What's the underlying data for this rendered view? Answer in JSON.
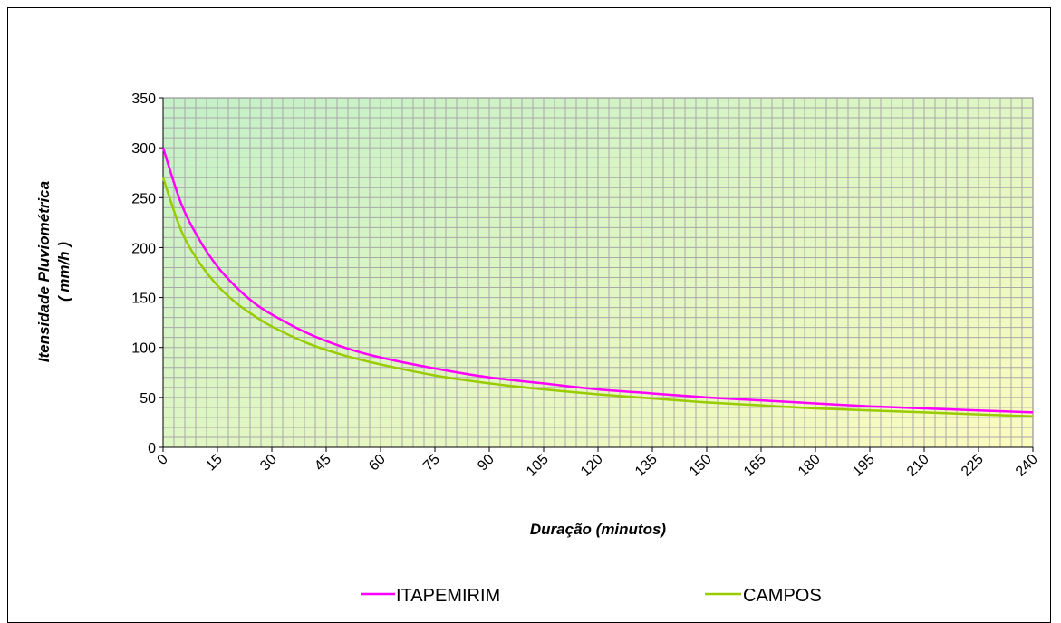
{
  "chart_data": {
    "type": "line",
    "title": "",
    "xlabel": "Duração (minutos)",
    "ylabel_line1": "Itensidade Pluviométrica",
    "ylabel_line2": "( mm/h )",
    "xlim": [
      0,
      240
    ],
    "ylim": [
      0,
      350
    ],
    "x_ticks": [
      "0",
      "15",
      "30",
      "45",
      "60",
      "75",
      "90",
      "105",
      "120",
      "135",
      "150",
      "165",
      "180",
      "195",
      "210",
      "225",
      "240"
    ],
    "y_ticks": [
      "0",
      "50",
      "100",
      "150",
      "200",
      "250",
      "300",
      "350"
    ],
    "grid": true,
    "legend_position": "bottom",
    "x": [
      0,
      5,
      10,
      15,
      20,
      25,
      30,
      40,
      50,
      60,
      75,
      90,
      105,
      120,
      135,
      150,
      165,
      180,
      195,
      210,
      225,
      240
    ],
    "series": [
      {
        "name": "ITAPEMIRIM",
        "color": "#ff00ff",
        "values": [
          300,
          244,
          208,
          181,
          161,
          145,
          133,
          114,
          100,
          90,
          79,
          70,
          64,
          58,
          54,
          50,
          47,
          44,
          41,
          39,
          37,
          35
        ]
      },
      {
        "name": "CAMPOS",
        "color": "#99cc00",
        "values": [
          270,
          217,
          185,
          162,
          145,
          132,
          121,
          104,
          92,
          83,
          72,
          64,
          58,
          53,
          49,
          45,
          42,
          39,
          37,
          35,
          33,
          31
        ]
      }
    ]
  }
}
